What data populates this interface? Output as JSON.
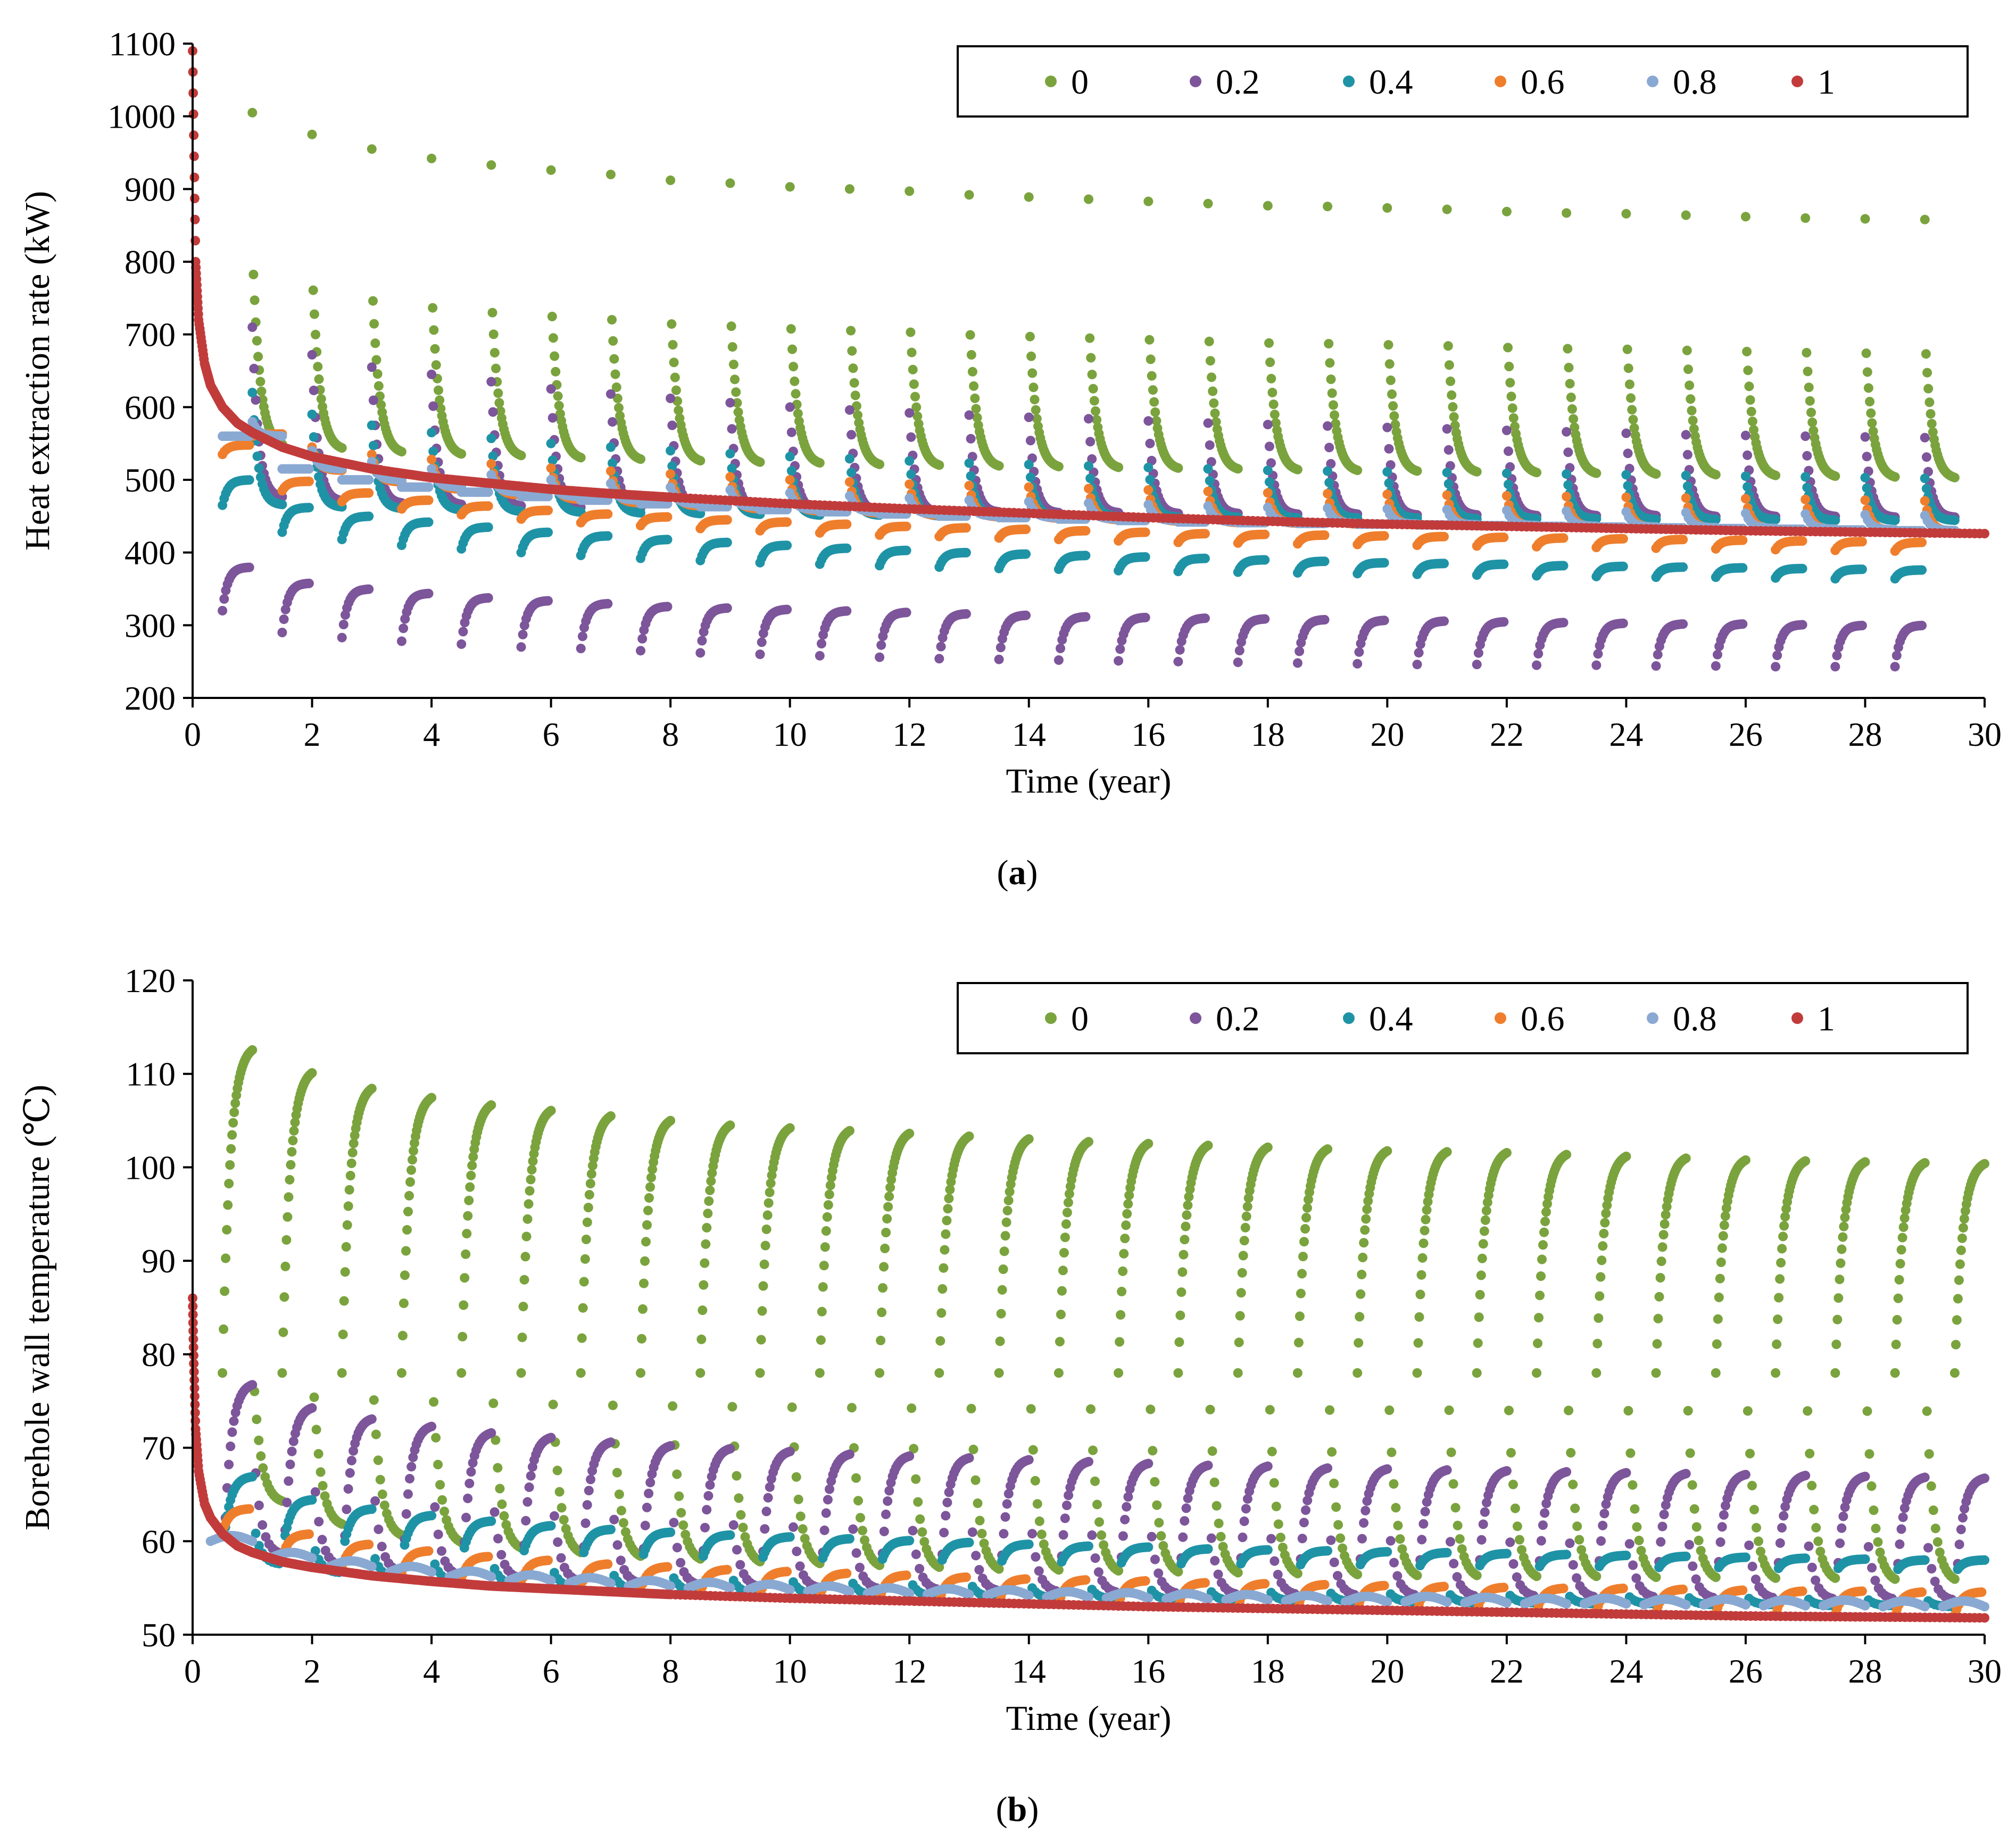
{
  "colors": {
    "0": "#7aa33d",
    "0.2": "#7d559a",
    "0.4": "#1f93a6",
    "0.6": "#ef7e2c",
    "0.8": "#8aa9d2",
    "1": "#c23b3b"
  },
  "captions": {
    "a": {
      "open": "(",
      "letter": "a",
      "close": ")"
    },
    "b": {
      "open": "(",
      "letter": "b",
      "close": ")"
    }
  },
  "chart_data": [
    {
      "id": "a",
      "type": "scatter",
      "title": "",
      "xlabel": "Time (year)",
      "ylabel": "Heat extraction rate (kW)",
      "xlim": [
        0,
        30
      ],
      "ylim": [
        200,
        1100
      ],
      "x_ticks": [
        "0",
        "2",
        "4",
        "6",
        "8",
        "10",
        "12",
        "14",
        "16",
        "18",
        "20",
        "22",
        "24",
        "26",
        "28",
        "30"
      ],
      "y_ticks": [
        "200",
        "300",
        "400",
        "500",
        "600",
        "700",
        "800",
        "900",
        "1000",
        "1100"
      ],
      "legend": {
        "position": "top-right",
        "entries": [
          "0",
          "0.2",
          "0.4",
          "0.6",
          "0.8",
          "1"
        ]
      },
      "series": [
        {
          "name": "0",
          "description": "annual cycles: peak at start of each heating season, decaying during season",
          "peak_per_year": [
            1005,
            975,
            955,
            942,
            933,
            926,
            920,
            912,
            908,
            903,
            900,
            897,
            892,
            889,
            886,
            883,
            880,
            877,
            876,
            874,
            872,
            869,
            867,
            866,
            864,
            862,
            860,
            859,
            858
          ],
          "season_end_per_year": [
            545,
            540,
            535,
            532,
            530,
            527,
            525,
            523,
            521,
            520,
            518,
            517,
            516,
            515,
            514,
            513,
            512,
            511,
            510,
            509,
            508,
            507,
            506,
            505,
            504,
            503,
            502,
            501,
            500
          ]
        },
        {
          "name": "0.2",
          "heating_peak_per_year": [
            710,
            672,
            655,
            645,
            635,
            625,
            618,
            612,
            606,
            600,
            596,
            592,
            589,
            586,
            584,
            581,
            578,
            576,
            574,
            572,
            570,
            568,
            566,
            564,
            562,
            561,
            560,
            559,
            558
          ],
          "heating_end_per_year": [
            475,
            470,
            467,
            465,
            463,
            461,
            460,
            459,
            458,
            457,
            456,
            455,
            455,
            454,
            454,
            453,
            453,
            452,
            452,
            451,
            451,
            450,
            450,
            450,
            449,
            449,
            449,
            448,
            448
          ],
          "recovery_start_per_year": [
            320,
            290,
            283,
            278,
            274,
            270,
            268,
            265,
            262,
            260,
            258,
            256,
            254,
            253,
            252,
            251,
            250,
            249,
            248,
            247,
            246,
            246,
            245,
            245,
            244,
            244,
            243,
            243,
            243
          ],
          "recovery_end_per_year": [
            380,
            358,
            350,
            344,
            338,
            334,
            330,
            326,
            324,
            322,
            320,
            318,
            316,
            314,
            312,
            311,
            310,
            309,
            308,
            307,
            306,
            305,
            304,
            303,
            302,
            302,
            301,
            300,
            300
          ]
        },
        {
          "name": "0.4",
          "heating_peak_per_year": [
            620,
            590,
            575,
            565,
            557,
            550,
            545,
            540,
            536,
            532,
            529,
            526,
            523,
            521,
            519,
            517,
            515,
            513,
            512,
            511,
            510,
            509,
            508,
            507,
            506,
            505,
            504,
            503,
            502
          ],
          "heating_end_per_year": [
            465,
            462,
            460,
            458,
            456,
            455,
            454,
            453,
            452,
            451,
            451,
            450,
            450,
            449,
            449,
            448,
            448,
            447,
            447,
            447,
            446,
            446,
            446,
            445,
            445,
            445,
            444,
            444,
            444
          ],
          "recovery_start_per_year": [
            465,
            428,
            418,
            410,
            405,
            400,
            396,
            392,
            389,
            386,
            384,
            382,
            380,
            378,
            377,
            375,
            374,
            373,
            372,
            371,
            370,
            369,
            368,
            367,
            366,
            366,
            365,
            364,
            364
          ],
          "recovery_end_per_year": [
            500,
            462,
            450,
            442,
            435,
            428,
            423,
            418,
            414,
            410,
            406,
            403,
            400,
            398,
            396,
            394,
            392,
            390,
            388,
            386,
            385,
            384,
            382,
            381,
            380,
            379,
            378,
            377,
            376
          ]
        },
        {
          "name": "0.6",
          "heating_peak_per_year": [
            560,
            545,
            535,
            528,
            522,
            516,
            512,
            508,
            504,
            500,
            497,
            494,
            492,
            490,
            488,
            486,
            484,
            482,
            481,
            480,
            479,
            478,
            477,
            476,
            475,
            474,
            473,
            472,
            471
          ],
          "recovery_start_per_year": [
            535,
            485,
            470,
            460,
            452,
            446,
            441,
            437,
            433,
            430,
            427,
            424,
            422,
            420,
            418,
            416,
            414,
            413,
            412,
            411,
            410,
            409,
            408,
            407,
            406,
            405,
            404,
            403,
            402
          ],
          "recovery_end_per_year": [
            548,
            498,
            482,
            472,
            464,
            458,
            453,
            449,
            445,
            442,
            439,
            436,
            434,
            432,
            430,
            428,
            426,
            425,
            424,
            423,
            422,
            421,
            420,
            419,
            418,
            417,
            416,
            415,
            414
          ]
        },
        {
          "name": "0.8",
          "heating_peak_per_year": [
            580,
            540,
            525,
            515,
            507,
            500,
            495,
            490,
            486,
            482,
            478,
            475,
            472,
            470,
            468,
            466,
            464,
            462,
            461,
            460,
            459,
            458,
            457,
            456,
            455,
            454,
            453,
            452,
            451
          ],
          "recovery_level_per_year": [
            560,
            515,
            500,
            490,
            483,
            477,
            472,
            467,
            463,
            459,
            456,
            453,
            450,
            448,
            446,
            444,
            442,
            441,
            440,
            439,
            438,
            437,
            436,
            435,
            434,
            433,
            432,
            431,
            430
          ]
        },
        {
          "name": "1",
          "x": [
            0,
            0.05,
            0.1,
            0.2,
            0.3,
            0.5,
            0.75,
            1,
            1.5,
            2,
            3,
            4,
            5,
            6,
            7,
            8,
            10,
            12,
            14,
            16,
            18,
            20,
            22,
            24,
            26,
            28,
            30
          ],
          "y": [
            1090,
            800,
            720,
            660,
            630,
            600,
            578,
            565,
            545,
            532,
            515,
            503,
            495,
            487,
            481,
            476,
            467,
            460,
            454,
            448,
            443,
            439,
            436,
            433,
            430,
            428,
            426
          ]
        }
      ]
    },
    {
      "id": "b",
      "type": "scatter",
      "title": "",
      "xlabel": "Time (year)",
      "ylabel": "Borehole wall temperature (℃)",
      "xlim": [
        0,
        30
      ],
      "ylim": [
        50,
        120
      ],
      "x_ticks": [
        "0",
        "2",
        "4",
        "6",
        "8",
        "10",
        "12",
        "14",
        "16",
        "18",
        "20",
        "22",
        "24",
        "26",
        "28",
        "30"
      ],
      "y_ticks": [
        "50",
        "60",
        "70",
        "80",
        "90",
        "100",
        "110",
        "120"
      ],
      "legend": {
        "position": "top-right",
        "entries": [
          "0",
          "0.2",
          "0.4",
          "0.6",
          "0.8",
          "1"
        ]
      },
      "series": [
        {
          "name": "0",
          "description": "temperature rises during recovery season, drops during heating season",
          "recovery_peak_per_year": [
            113.2,
            110.7,
            109.0,
            108.0,
            107.2,
            106.6,
            106.0,
            105.5,
            105.0,
            104.7,
            104.4,
            104.1,
            103.8,
            103.5,
            103.2,
            103.0,
            102.8,
            102.6,
            102.4,
            102.2,
            102.1,
            102.0,
            101.8,
            101.6,
            101.4,
            101.2,
            101.1,
            101.0,
            100.9,
            100.8
          ],
          "heating_min_per_year": [
            64.0,
            61.5,
            60.3,
            59.5,
            58.9,
            58.4,
            58.0,
            57.7,
            57.4,
            57.2,
            57.0,
            56.8,
            56.6,
            56.5,
            56.4,
            56.3,
            56.2,
            56.1,
            56.0,
            55.9,
            55.9,
            55.8,
            55.8,
            55.7,
            55.7,
            55.6,
            55.6,
            55.5,
            55.5
          ]
        },
        {
          "name": "0.2",
          "recovery_peak_per_year": [
            77.0,
            74.5,
            73.3,
            72.5,
            71.8,
            71.3,
            70.8,
            70.4,
            70.1,
            69.8,
            69.5,
            69.3,
            69.1,
            68.9,
            68.7,
            68.5,
            68.3,
            68.2,
            68.0,
            67.9,
            67.8,
            67.7,
            67.6,
            67.5,
            67.4,
            67.3,
            67.2,
            67.1,
            67.0,
            66.9
          ],
          "heating_min_per_year": [
            58.5,
            57.2,
            56.6,
            56.2,
            55.9,
            55.6,
            55.4,
            55.2,
            55.0,
            54.9,
            54.8,
            54.7,
            54.6,
            54.5,
            54.4,
            54.3,
            54.2,
            54.2,
            54.1,
            54.1,
            54.0,
            54.0,
            53.9,
            53.9,
            53.8,
            53.8,
            53.7,
            53.7,
            53.6
          ]
        },
        {
          "name": "0.4",
          "recovery_peak_per_year": [
            67.0,
            64.5,
            63.5,
            62.8,
            62.2,
            61.7,
            61.3,
            61.0,
            60.7,
            60.5,
            60.3,
            60.1,
            59.9,
            59.7,
            59.5,
            59.4,
            59.2,
            59.1,
            59.0,
            58.9,
            58.8,
            58.7,
            58.6,
            58.5,
            58.4,
            58.3,
            58.2,
            58.1,
            58.0,
            58.0
          ],
          "heating_min_per_year": [
            57.5,
            56.6,
            56.0,
            55.6,
            55.3,
            55.0,
            54.8,
            54.6,
            54.4,
            54.3,
            54.2,
            54.1,
            54.0,
            53.9,
            53.8,
            53.7,
            53.6,
            53.6,
            53.5,
            53.5,
            53.4,
            53.4,
            53.3,
            53.3,
            53.2,
            53.2,
            53.1,
            53.1,
            53.0
          ]
        },
        {
          "name": "0.6",
          "recovery_peak_per_year": [
            63.5,
            60.8,
            59.7,
            59.0,
            58.4,
            58.0,
            57.6,
            57.3,
            57.0,
            56.8,
            56.6,
            56.4,
            56.2,
            56.0,
            55.9,
            55.8,
            55.6,
            55.5,
            55.4,
            55.3,
            55.2,
            55.1,
            55.0,
            55.0,
            54.9,
            54.8,
            54.7,
            54.7,
            54.6,
            54.6
          ]
        },
        {
          "name": "0.8",
          "level_per_year": [
            60.0,
            58.2,
            57.3,
            56.7,
            56.2,
            55.8,
            55.5,
            55.2,
            55.0,
            54.8,
            54.6,
            54.4,
            54.3,
            54.2,
            54.0,
            53.9,
            53.8,
            53.7,
            53.6,
            53.5,
            53.5,
            53.4,
            53.3,
            53.3,
            53.2,
            53.2,
            53.1,
            53.1,
            53.0,
            53.0
          ]
        },
        {
          "name": "1",
          "x": [
            0,
            0.02,
            0.05,
            0.1,
            0.2,
            0.3,
            0.5,
            0.75,
            1,
            1.5,
            2,
            3,
            4,
            5,
            6,
            7,
            8,
            10,
            12,
            14,
            16,
            18,
            20,
            22,
            24,
            26,
            28,
            30
          ],
          "y": [
            86.0,
            79.0,
            72.0,
            67.5,
            64.0,
            62.5,
            60.8,
            59.5,
            58.8,
            57.8,
            57.2,
            56.3,
            55.7,
            55.2,
            54.9,
            54.6,
            54.3,
            53.9,
            53.6,
            53.3,
            53.0,
            52.8,
            52.6,
            52.4,
            52.2,
            52.0,
            51.9,
            51.8
          ]
        }
      ]
    }
  ]
}
